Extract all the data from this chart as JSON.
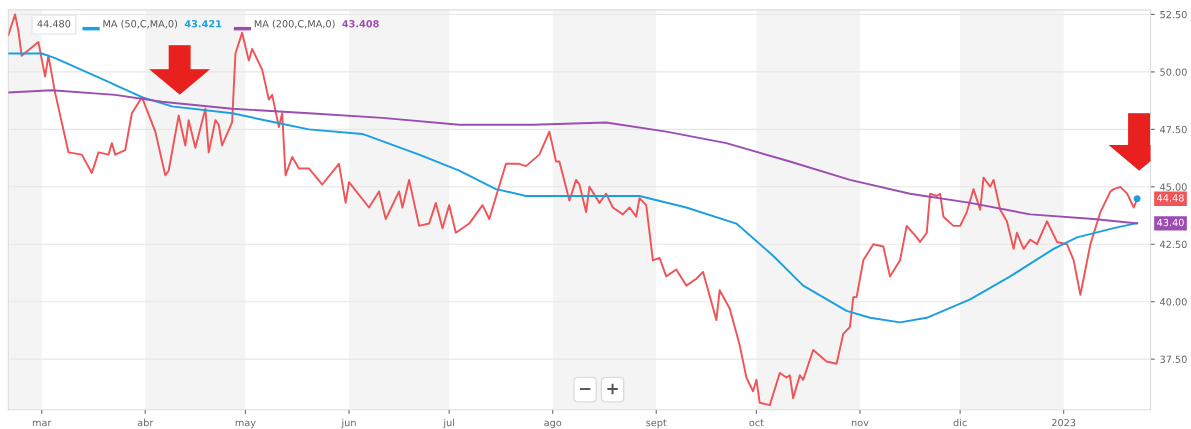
{
  "chart_data": {
    "type": "line",
    "x": [
      "2022-02-19",
      "2022-02-21",
      "2022-02-22",
      "2022-02-23",
      "2022-02-28",
      "2022-03-02",
      "2022-03-03",
      "2022-03-05",
      "2022-03-09",
      "2022-03-13",
      "2022-03-16",
      "2022-03-18",
      "2022-03-21",
      "2022-03-22",
      "2022-03-23",
      "2022-03-26",
      "2022-03-28",
      "2022-03-31",
      "2022-04-04",
      "2022-04-07",
      "2022-04-08",
      "2022-04-11",
      "2022-04-13",
      "2022-04-14",
      "2022-04-16",
      "2022-04-19",
      "2022-04-20",
      "2022-04-22",
      "2022-04-23",
      "2022-04-24",
      "2022-04-27",
      "2022-04-28",
      "2022-04-30",
      "2022-05-02",
      "2022-05-03",
      "2022-05-06",
      "2022-05-08",
      "2022-05-09",
      "2022-05-11",
      "2022-05-12",
      "2022-05-13",
      "2022-05-15",
      "2022-05-17",
      "2022-05-20",
      "2022-05-24",
      "2022-05-29",
      "2022-05-31",
      "2022-06-01",
      "2022-06-07",
      "2022-06-10",
      "2022-06-12",
      "2022-06-16",
      "2022-06-17",
      "2022-06-19",
      "2022-06-22",
      "2022-06-25",
      "2022-06-27",
      "2022-06-29",
      "2022-07-01",
      "2022-07-03",
      "2022-07-07",
      "2022-07-11",
      "2022-07-13",
      "2022-07-18",
      "2022-07-22",
      "2022-07-24",
      "2022-07-28",
      "2022-07-31",
      "2022-08-02",
      "2022-08-03",
      "2022-08-06",
      "2022-08-08",
      "2022-08-09",
      "2022-08-11",
      "2022-08-12",
      "2022-08-15",
      "2022-08-17",
      "2022-08-19",
      "2022-08-22",
      "2022-08-24",
      "2022-08-26",
      "2022-08-27",
      "2022-08-29",
      "2022-08-31",
      "2022-09-02",
      "2022-09-04",
      "2022-09-07",
      "2022-09-10",
      "2022-09-13",
      "2022-09-15",
      "2022-09-19",
      "2022-09-20",
      "2022-09-23",
      "2022-09-26",
      "2022-09-28",
      "2022-09-30",
      "2022-10-01",
      "2022-10-02",
      "2022-10-05",
      "2022-10-08",
      "2022-10-10",
      "2022-10-11",
      "2022-10-12",
      "2022-10-14",
      "2022-10-15",
      "2022-10-18",
      "2022-10-22",
      "2022-10-25",
      "2022-10-27",
      "2022-10-29",
      "2022-10-30",
      "2022-10-31",
      "2022-11-02",
      "2022-11-05",
      "2022-11-08",
      "2022-11-10",
      "2022-11-13",
      "2022-11-15",
      "2022-11-18",
      "2022-11-19",
      "2022-11-21",
      "2022-11-22",
      "2022-11-24",
      "2022-11-25",
      "2022-11-26",
      "2022-11-29",
      "2022-12-01",
      "2022-12-03",
      "2022-12-05",
      "2022-12-07",
      "2022-12-08",
      "2022-12-10",
      "2022-12-11",
      "2022-12-13",
      "2022-12-15",
      "2022-12-17",
      "2022-12-18",
      "2022-12-20",
      "2022-12-22",
      "2022-12-24",
      "2022-12-27",
      "2022-12-30",
      "2023-01-02",
      "2023-01-04",
      "2023-01-06",
      "2023-01-09",
      "2023-01-12",
      "2023-01-15",
      "2023-01-16",
      "2023-01-18",
      "2023-01-20",
      "2023-01-22",
      "2023-01-23"
    ],
    "series": [
      {
        "color": "#ef5558",
        "values": [
          51.6,
          52.5,
          51.8,
          50.7,
          51.3,
          49.8,
          50.7,
          49.1,
          46.5,
          46.4,
          45.6,
          46.5,
          46.4,
          46.9,
          46.4,
          46.6,
          48.2,
          48.9,
          47.4,
          45.5,
          45.7,
          48.1,
          46.8,
          47.9,
          46.7,
          48.4,
          46.5,
          47.9,
          47.7,
          46.8,
          47.8,
          50.8,
          51.7,
          50.5,
          51.0,
          50.1,
          48.8,
          49.0,
          47.6,
          48.2,
          45.5,
          46.3,
          45.8,
          45.8,
          45.1,
          46.0,
          44.3,
          45.2,
          44.1,
          44.8,
          43.6,
          44.8,
          44.1,
          45.3,
          43.3,
          43.4,
          44.3,
          43.2,
          44.2,
          43.0,
          43.4,
          44.2,
          43.6,
          46.0,
          46.0,
          45.9,
          46.4,
          47.4,
          46.1,
          46.1,
          44.4,
          45.3,
          45.1,
          43.9,
          45.0,
          44.3,
          44.7,
          44.1,
          43.8,
          44.1,
          43.7,
          44.5,
          44.2,
          41.8,
          41.9,
          41.1,
          41.4,
          40.7,
          41.0,
          41.3,
          39.2,
          40.5,
          39.7,
          38.1,
          36.7,
          36.1,
          36.6,
          35.6,
          35.5,
          36.9,
          36.7,
          36.8,
          35.8,
          36.8,
          36.6,
          37.9,
          37.4,
          37.3,
          38.6,
          38.9,
          40.2,
          40.2,
          41.8,
          42.5,
          42.4,
          41.1,
          41.8,
          43.3,
          42.8,
          42.6,
          43.0,
          44.7,
          44.6,
          44.7,
          43.7,
          43.3,
          43.3,
          43.9,
          44.9,
          44.0,
          45.4,
          45.0,
          45.3,
          44.0,
          43.5,
          42.3,
          43.0,
          42.3,
          42.7,
          42.5,
          43.5,
          42.6,
          42.5,
          41.8,
          40.3,
          42.5,
          43.9,
          44.8,
          44.9,
          45.0,
          44.7,
          44.1,
          44.48
        ]
      },
      {
        "name": "MA (50,C,MA,0)",
        "color": "#1a9fe0",
        "x": [
          "2022-02-19",
          "2022-03-01",
          "2022-03-05",
          "2022-03-19",
          "2022-03-31",
          "2022-04-09",
          "2022-04-27",
          "2022-05-10",
          "2022-05-20",
          "2022-06-05",
          "2022-06-22",
          "2022-07-04",
          "2022-07-15",
          "2022-07-24",
          "2022-08-13",
          "2022-08-27",
          "2022-09-10",
          "2022-09-25",
          "2022-10-06",
          "2022-10-15",
          "2022-10-28",
          "2022-11-04",
          "2022-11-13",
          "2022-11-21",
          "2022-12-04",
          "2022-12-16",
          "2022-12-29",
          "2023-01-05",
          "2023-01-16",
          "2023-01-23"
        ],
        "values": [
          50.8,
          50.8,
          50.6,
          49.7,
          48.9,
          48.5,
          48.2,
          47.8,
          47.5,
          47.3,
          46.4,
          45.7,
          44.9,
          44.6,
          44.6,
          44.6,
          44.1,
          43.4,
          42.0,
          40.7,
          39.6,
          39.3,
          39.1,
          39.3,
          40.1,
          41.1,
          42.3,
          42.8,
          43.2,
          43.42
        ]
      },
      {
        "name": "MA (200,C,MA,0)",
        "color": "#9b4db0",
        "x": [
          "2022-02-19",
          "2022-03-04",
          "2022-03-23",
          "2022-04-06",
          "2022-04-27",
          "2022-05-20",
          "2022-06-11",
          "2022-07-04",
          "2022-07-26",
          "2022-08-17",
          "2022-09-04",
          "2022-09-22",
          "2022-10-11",
          "2022-10-29",
          "2022-11-16",
          "2022-12-04",
          "2022-12-22",
          "2023-01-10",
          "2023-01-23"
        ],
        "values": [
          49.1,
          49.2,
          49.0,
          48.7,
          48.4,
          48.2,
          48.0,
          47.7,
          47.7,
          47.8,
          47.4,
          46.9,
          46.1,
          45.3,
          44.7,
          44.3,
          43.8,
          43.6,
          43.41
        ]
      }
    ],
    "xlim": [
      "2022-02-19",
      "2023-01-27"
    ],
    "xticks": [
      {
        "value": "2022-03-01",
        "label": "mar"
      },
      {
        "value": "2022-04-01",
        "label": "abr"
      },
      {
        "value": "2022-05-01",
        "label": "may"
      },
      {
        "value": "2022-06-01",
        "label": "jun"
      },
      {
        "value": "2022-07-01",
        "label": "jul"
      },
      {
        "value": "2022-08-01",
        "label": "ago"
      },
      {
        "value": "2022-09-01",
        "label": "sept"
      },
      {
        "value": "2022-10-01",
        "label": "oct"
      },
      {
        "value": "2022-11-01",
        "label": "nov"
      },
      {
        "value": "2022-12-01",
        "label": "dic"
      },
      {
        "value": "2023-01-01",
        "label": "2023"
      }
    ],
    "ylim": [
      35.3,
      52.7
    ],
    "yticks": [
      {
        "value": 37.5,
        "label": "37.50"
      },
      {
        "value": 40,
        "label": "40.00"
      },
      {
        "value": 42.5,
        "label": "42.50"
      },
      {
        "value": 45,
        "label": "45.00"
      },
      {
        "value": 47.5,
        "label": "47.50"
      },
      {
        "value": 50,
        "label": "50.00"
      },
      {
        "value": 52.5,
        "label": "52.50"
      }
    ],
    "bands": [
      {
        "axis": "x",
        "from": "2022-02-19",
        "to": "2022-03-01",
        "color": "#f4f4f4"
      },
      {
        "axis": "x",
        "from": "2022-04-01",
        "to": "2022-05-01",
        "color": "#f4f4f4"
      },
      {
        "axis": "x",
        "from": "2022-06-01",
        "to": "2022-07-01",
        "color": "#f4f4f4"
      },
      {
        "axis": "x",
        "from": "2022-08-01",
        "to": "2022-09-01",
        "color": "#f4f4f4"
      },
      {
        "axis": "x",
        "from": "2022-10-01",
        "to": "2022-11-01",
        "color": "#f4f4f4"
      },
      {
        "axis": "x",
        "from": "2022-12-01",
        "to": "2023-01-01",
        "color": "#f4f4f4"
      }
    ],
    "annotations": [
      "44.480",
      "43.421",
      "43.408",
      "−",
      "+",
      {
        "text": "44.48",
        "x": "2023-01-23",
        "y": 44.48
      },
      {
        "text": "43.40",
        "x": "2023-01-23",
        "y": 43.408
      }
    ],
    "grid": "y",
    "legend": "top left",
    "marker": "none",
    "line_style": "solid"
  }
}
